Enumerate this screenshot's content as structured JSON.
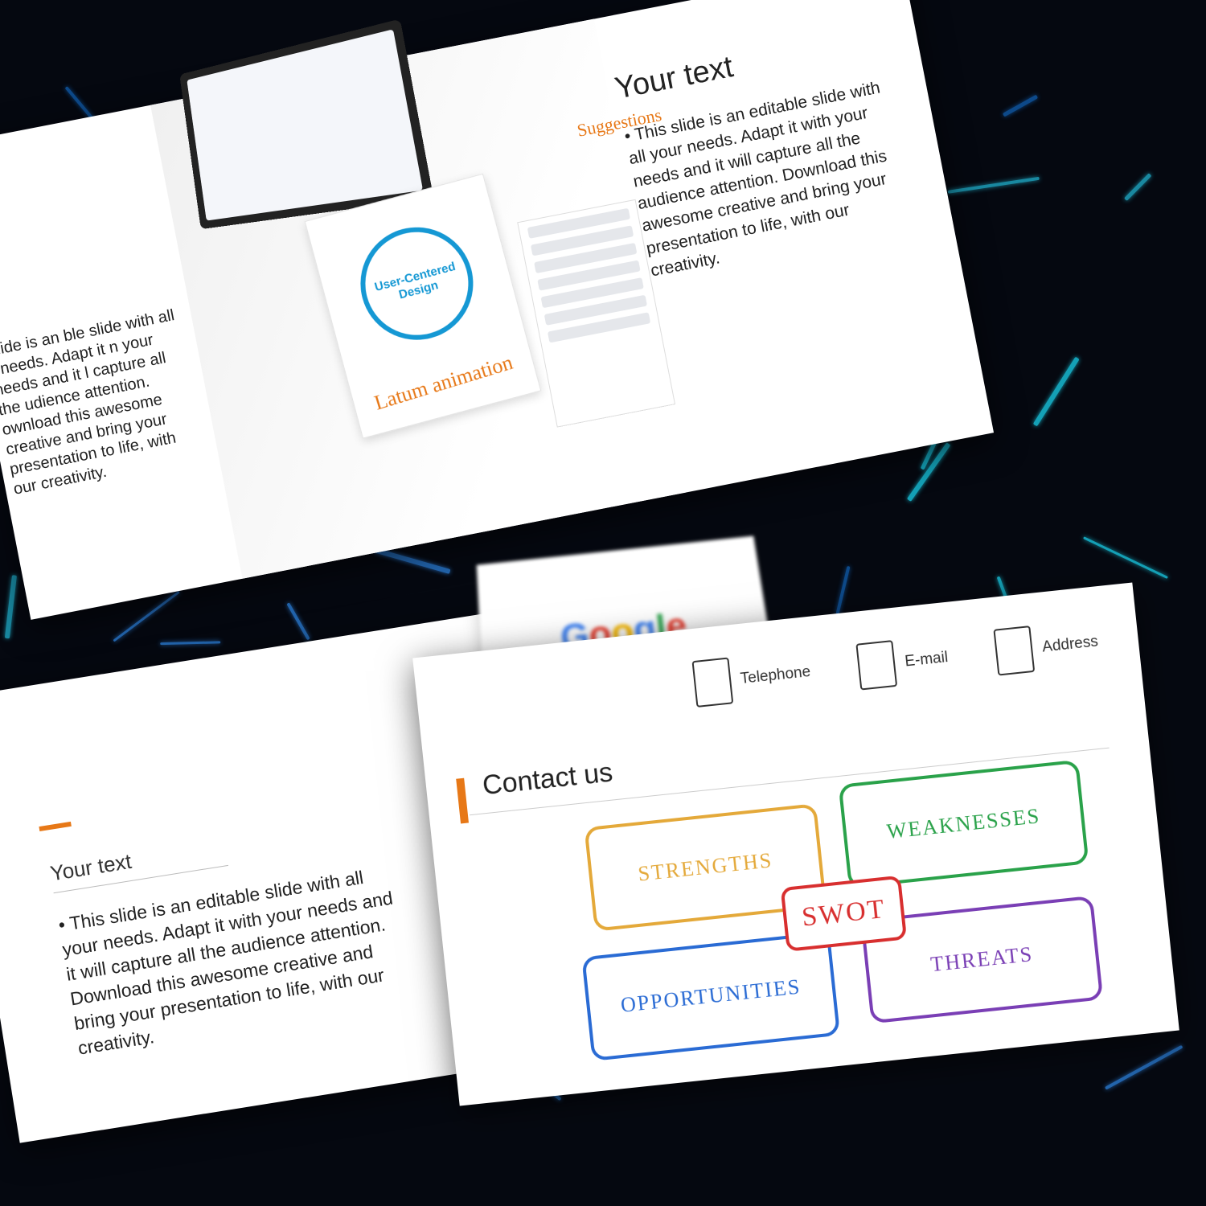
{
  "background": {
    "base_color": "#050810",
    "stroke_colors": [
      "#18c7e0",
      "#2a7bd4",
      "#0f5aa8",
      "#1ea8c4"
    ],
    "stroke_count": 60
  },
  "slide1": {
    "left_text": "lide is an\nble slide with all\nr needs. Adapt it\nn your needs and it\nl capture all the\nudience attention.\nownload this\nawesome creative and\nbring your\npresentation to life,\nwith our creativity.",
    "circle_label": "User-Centered Design",
    "circle_color": "#1598d4",
    "handwritten_bottom": "Latum animation",
    "handwritten_top_right": "Suggestions",
    "right_heading": "Your text",
    "right_body": "This slide is an editable slide with all your needs. Adapt it with your needs and it will capture all the audience attention. Download this awesome creative and bring your presentation to life, with our creativity."
  },
  "slide2": {
    "google_letters": [
      {
        "ch": "G",
        "color": "#4285F4"
      },
      {
        "ch": "o",
        "color": "#EA4335"
      },
      {
        "ch": "o",
        "color": "#FBBC05"
      },
      {
        "ch": "g",
        "color": "#4285F4"
      },
      {
        "ch": "l",
        "color": "#34A853"
      },
      {
        "ch": "e",
        "color": "#EA4335"
      }
    ],
    "accent_color": "#e77817",
    "heading": "Your text",
    "body": "This slide is an editable slide with all your needs. Adapt it with your needs and it will capture all the audience attention. Download this awesome creative and bring your presentation to life, with our creativity."
  },
  "slide3": {
    "accent_color": "#e77817",
    "heading": "Contact us",
    "contacts": [
      {
        "label": "Telephone"
      },
      {
        "label": "E-mail"
      },
      {
        "label": "Address"
      }
    ],
    "swot": {
      "center": {
        "label": "SWOT",
        "color": "#d82f2f"
      },
      "boxes": [
        {
          "key": "s",
          "label": "STRENGTHS",
          "color": "#e4a93a"
        },
        {
          "key": "w",
          "label": "WEAKNESSES",
          "color": "#2aa24a"
        },
        {
          "key": "o",
          "label": "OPPORTUNITIES",
          "color": "#2a6bd4"
        },
        {
          "key": "t",
          "label": "THREATS",
          "color": "#7a3fb5"
        }
      ]
    }
  }
}
